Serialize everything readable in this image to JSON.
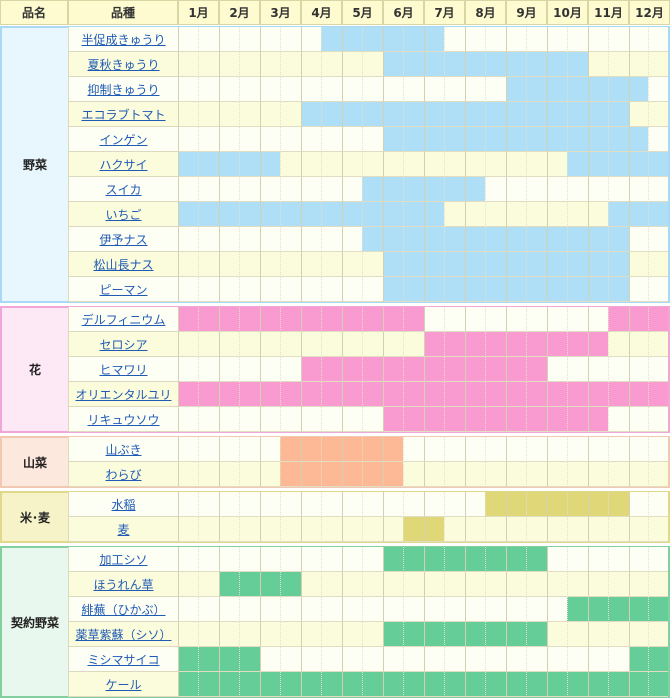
{
  "header": {
    "category_label": "品名",
    "variety_label": "品種",
    "months": [
      "1月",
      "2月",
      "3月",
      "4月",
      "5月",
      "6月",
      "7月",
      "8月",
      "9月",
      "10月",
      "11月",
      "12月"
    ]
  },
  "groups": [
    {
      "name": "野菜",
      "border_color": "#a9d9f5",
      "bg_color": "#e8f6fe",
      "fill_color": "#aedff6",
      "row_bg_odd": "#fefff4",
      "row_bg_even": "#fbfcdc",
      "rows": [
        {
          "label": "半促成きゅうり",
          "on": [
            [
              7,
              13
            ]
          ]
        },
        {
          "label": "夏秋きゅうり",
          "on": [
            [
              10,
              20
            ]
          ]
        },
        {
          "label": "抑制きゅうり",
          "on": [
            [
              16,
              23
            ]
          ]
        },
        {
          "label": "エコラブトマト",
          "on": [
            [
              6,
              22
            ]
          ]
        },
        {
          "label": "インゲン",
          "on": [
            [
              10,
              23
            ]
          ]
        },
        {
          "label": "ハクサイ",
          "on": [
            [
              0,
              5
            ],
            [
              19,
              24
            ]
          ]
        },
        {
          "label": "スイカ",
          "on": [
            [
              9,
              15
            ]
          ]
        },
        {
          "label": "いちご",
          "on": [
            [
              0,
              13
            ],
            [
              21,
              24
            ]
          ]
        },
        {
          "label": "伊予ナス",
          "on": [
            [
              9,
              22
            ]
          ]
        },
        {
          "label": "松山長ナス",
          "on": [
            [
              10,
              22
            ]
          ]
        },
        {
          "label": "ピーマン",
          "on": [
            [
              10,
              22
            ]
          ]
        }
      ]
    },
    {
      "name": "花",
      "border_color": "#f0a6d7",
      "bg_color": "#fde8f5",
      "fill_color": "#f99bd0",
      "row_bg_odd": "#fefff4",
      "row_bg_even": "#fbfcdc",
      "rows": [
        {
          "label": "デルフィニウム",
          "on": [
            [
              0,
              12
            ],
            [
              21,
              24
            ]
          ]
        },
        {
          "label": "セロシア",
          "on": [
            [
              12,
              21
            ]
          ]
        },
        {
          "label": "ヒマワリ",
          "on": [
            [
              6,
              18
            ]
          ]
        },
        {
          "label": "オリエンタルユリ",
          "on": [
            [
              0,
              24
            ]
          ]
        },
        {
          "label": "リキュウソウ",
          "on": [
            [
              10,
              21
            ]
          ]
        }
      ]
    },
    {
      "name": "山菜",
      "border_color": "#f3c8b0",
      "bg_color": "#fde8de",
      "fill_color": "#fdb895",
      "row_bg_odd": "#fefff4",
      "row_bg_even": "#fbfcdc",
      "rows": [
        {
          "label": "山ぶき",
          "on": [
            [
              5,
              11
            ]
          ]
        },
        {
          "label": "わらび",
          "on": [
            [
              5,
              11
            ]
          ]
        }
      ]
    },
    {
      "name": "米･麦",
      "border_color": "#e2d889",
      "bg_color": "#f7f3c9",
      "fill_color": "#e0d878",
      "row_bg_odd": "#fefff4",
      "row_bg_even": "#fbfcdc",
      "rows": [
        {
          "label": "水稲",
          "on": [
            [
              15,
              22
            ]
          ]
        },
        {
          "label": "麦",
          "on": [
            [
              11,
              13
            ]
          ]
        }
      ]
    },
    {
      "name": "契約野菜",
      "border_color": "#84cf9f",
      "bg_color": "#e9f8ee",
      "fill_color": "#65cd98",
      "row_bg_odd": "#fefff4",
      "row_bg_even": "#fbfcdc",
      "rows": [
        {
          "label": "加工シソ",
          "on": [
            [
              10,
              18
            ]
          ]
        },
        {
          "label": "ほうれん草",
          "on": [
            [
              2,
              6
            ]
          ]
        },
        {
          "label": "緋蕪（ひかぶ）",
          "on": [
            [
              19,
              24
            ]
          ]
        },
        {
          "label": "薬草紫蘇（シソ）",
          "on": [
            [
              10,
              18
            ]
          ]
        },
        {
          "label": "ミシマサイコ",
          "on": [
            [
              0,
              4
            ],
            [
              22,
              24
            ]
          ]
        },
        {
          "label": "ケール",
          "on": [
            [
              0,
              24
            ]
          ]
        }
      ]
    }
  ]
}
